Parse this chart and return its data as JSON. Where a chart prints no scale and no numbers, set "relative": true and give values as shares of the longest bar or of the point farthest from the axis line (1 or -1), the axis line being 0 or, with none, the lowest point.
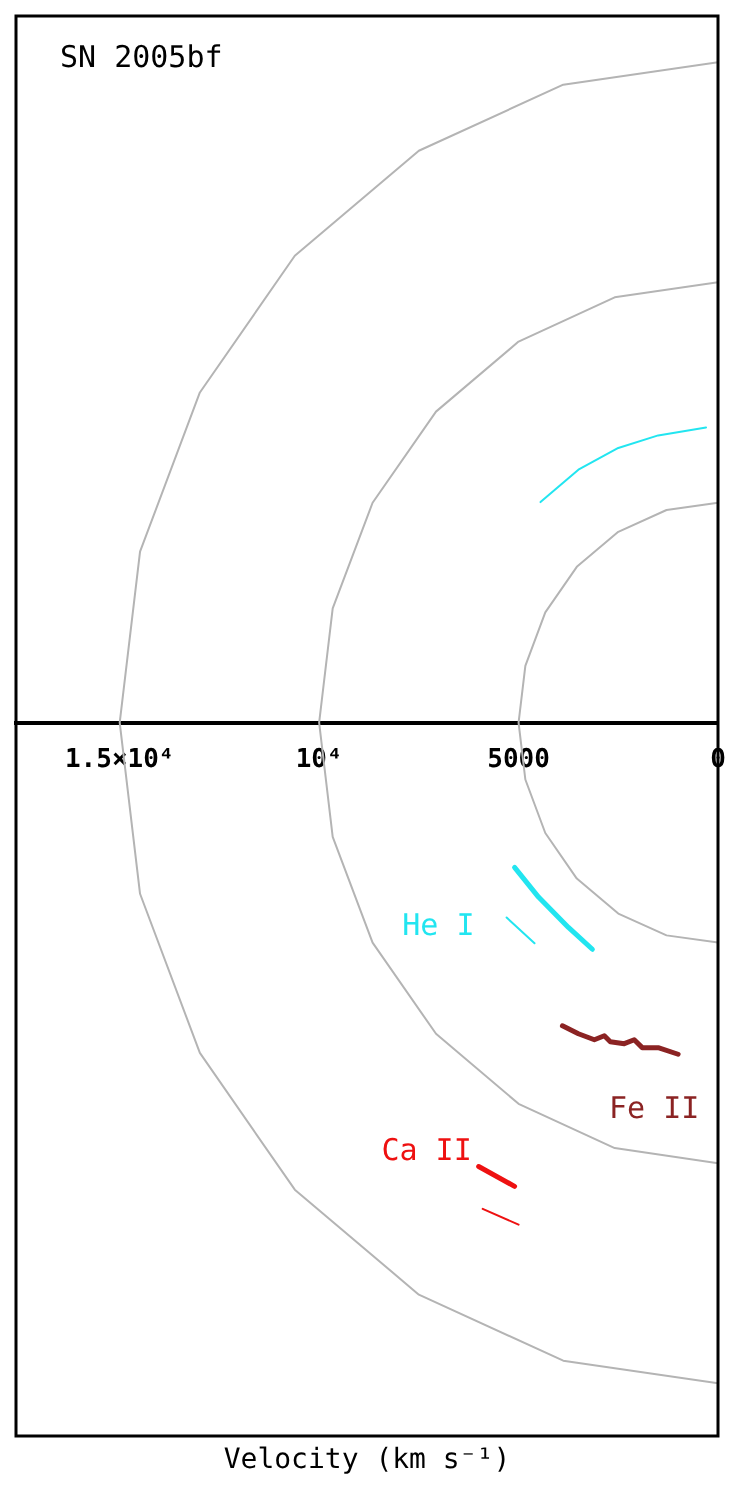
{
  "chart_data": {
    "type": "line",
    "title": "SN 2005bf",
    "xlabel": "Velocity (km s⁻¹)",
    "relative": true,
    "xlim": [
      17600,
      0
    ],
    "xticks": [
      {
        "value": 15000,
        "label": "1.5×10⁴"
      },
      {
        "value": 10000,
        "label": "10⁴"
      },
      5000,
      0
    ],
    "grid": false,
    "legend": false,
    "marker": "none",
    "line_style": "solid",
    "series": [
      {
        "color": "#b4b4b4",
        "x": [
          0,
          3880,
          7500,
          10610,
          12990,
          14490,
          15000,
          14490,
          12990,
          10610,
          7500,
          3880,
          0
        ],
        "values": [
          -1,
          -0.966,
          -0.866,
          -0.707,
          -0.5,
          -0.259,
          0,
          0.259,
          0.5,
          0.707,
          0.866,
          0.966,
          1
        ]
      },
      {
        "color": "#b4b4b4",
        "x": [
          0,
          2590,
          5000,
          7070,
          8660,
          9660,
          10000,
          9660,
          8660,
          7070,
          5000,
          2590,
          0
        ],
        "values": [
          -0.667,
          -0.644,
          -0.577,
          -0.471,
          -0.333,
          -0.173,
          0,
          0.173,
          0.333,
          0.471,
          0.577,
          0.644,
          0.667
        ]
      },
      {
        "color": "#b4b4b4",
        "x": [
          0,
          1290,
          2500,
          3540,
          4330,
          4830,
          5000,
          4830,
          4330,
          3540,
          2500,
          1290,
          0
        ],
        "values": [
          -0.333,
          -0.322,
          -0.289,
          -0.236,
          -0.167,
          -0.086,
          0,
          0.086,
          0.167,
          0.236,
          0.289,
          0.322,
          0.333
        ]
      },
      {
        "color": "#22e5f0",
        "x": [
          4450,
          3500,
          2500,
          1500,
          300
        ],
        "values": [
          0.334,
          0.383,
          0.416,
          0.435,
          0.447
        ]
      },
      {
        "color": "#22e5f0",
        "x": [
          5300,
          4600
        ],
        "values": [
          -0.295,
          -0.334
        ]
      },
      {
        "name": "He I",
        "color": "#22e5f0",
        "x": [
          5100,
          4500,
          3750,
          3150
        ],
        "values": [
          -0.219,
          -0.264,
          -0.31,
          -0.343
        ]
      },
      {
        "name": "Fe II",
        "color": "#8b2323",
        "x": [
          3900,
          3500,
          3100,
          2850,
          2700,
          2350,
          2100,
          1900,
          1500,
          1000
        ],
        "values": [
          -0.459,
          -0.471,
          -0.48,
          -0.474,
          -0.483,
          -0.486,
          -0.48,
          -0.492,
          -0.492,
          -0.502
        ]
      },
      {
        "name": "Ca II",
        "color": "#ee1111",
        "x": [
          6000,
          5100
        ],
        "values": [
          -0.672,
          -0.702
        ]
      },
      {
        "color": "#ee1111",
        "x": [
          5900,
          5000
        ],
        "values": [
          -0.736,
          -0.76
        ]
      }
    ]
  }
}
